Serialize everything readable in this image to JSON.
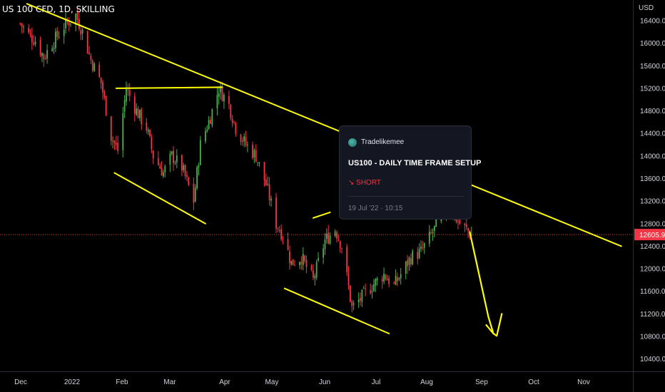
{
  "header": {
    "title": "US 100 CFD, 1D, SKILLING"
  },
  "price_axis": {
    "unit": "USD",
    "ticks": [
      "16400.0",
      "16000.0",
      "15600.0",
      "15200.0",
      "14800.0",
      "14400.0",
      "14000.0",
      "13600.0",
      "13200.0",
      "12800.0",
      "12400.0",
      "12000.0",
      "11600.0",
      "11200.0",
      "10800.0",
      "10400.0"
    ],
    "last_price_label": "12605.9"
  },
  "time_axis": {
    "labels": [
      "Dec",
      "2022",
      "Feb",
      "Mar",
      "Apr",
      "May",
      "Jun",
      "Jul",
      "Aug",
      "Sep",
      "Oct",
      "Nov"
    ]
  },
  "idea_card": {
    "author": "Tradelikemee",
    "title": "US100 - DAILY TIME FRAME SETUP",
    "direction": "↘ SHORT",
    "date": "19 Jul '22 · 10:15"
  },
  "colors": {
    "background": "#000000",
    "up_candle": "#4caf50",
    "down_candle": "#f23645",
    "drawing": "#ffff00",
    "last_price_line": "#f23645",
    "axis_text": "#d1d4dc"
  },
  "chart_data": {
    "type": "candlestick",
    "ylim": [
      10100,
      16700
    ],
    "y_ticks": [
      16400,
      16000,
      15600,
      15200,
      14800,
      14400,
      14000,
      13600,
      13200,
      12800,
      12400,
      12000,
      11600,
      11200,
      10800,
      10400
    ],
    "x_labels": [
      "Dec",
      "2022",
      "Feb",
      "Mar",
      "Apr",
      "May",
      "Jun",
      "Jul",
      "Aug",
      "Sep",
      "Oct",
      "Nov"
    ],
    "last_price": 12605.9,
    "close_path": [
      [
        "2021-12-01",
        16350
      ],
      [
        "2021-12-06",
        16150
      ],
      [
        "2021-12-10",
        16050
      ],
      [
        "2021-12-15",
        15750
      ],
      [
        "2021-12-20",
        16000
      ],
      [
        "2021-12-27",
        16300
      ],
      [
        "2022-01-03",
        16500
      ],
      [
        "2022-01-07",
        16200
      ],
      [
        "2022-01-12",
        15700
      ],
      [
        "2022-01-18",
        15300
      ],
      [
        "2022-01-24",
        14350
      ],
      [
        "2022-01-28",
        14100
      ],
      [
        "2022-02-02",
        15200
      ],
      [
        "2022-02-08",
        14800
      ],
      [
        "2022-02-14",
        14500
      ],
      [
        "2022-02-18",
        14000
      ],
      [
        "2022-02-24",
        13700
      ],
      [
        "2022-03-01",
        14000
      ],
      [
        "2022-03-07",
        13800
      ],
      [
        "2022-03-14",
        13200
      ],
      [
        "2022-03-18",
        14200
      ],
      [
        "2022-03-24",
        14700
      ],
      [
        "2022-03-29",
        15200
      ],
      [
        "2022-04-04",
        14900
      ],
      [
        "2022-04-08",
        14500
      ],
      [
        "2022-04-14",
        14200
      ],
      [
        "2022-04-20",
        14000
      ],
      [
        "2022-04-26",
        13500
      ],
      [
        "2022-05-02",
        12800
      ],
      [
        "2022-05-06",
        12600
      ],
      [
        "2022-05-11",
        12100
      ],
      [
        "2022-05-17",
        12200
      ],
      [
        "2022-05-24",
        11800
      ],
      [
        "2022-05-31",
        12500
      ],
      [
        "2022-06-06",
        12700
      ],
      [
        "2022-06-10",
        12400
      ],
      [
        "2022-06-16",
        11300
      ],
      [
        "2022-06-22",
        11500
      ],
      [
        "2022-06-28",
        11700
      ],
      [
        "2022-07-05",
        11900
      ],
      [
        "2022-07-11",
        11700
      ],
      [
        "2022-07-15",
        11900
      ],
      [
        "2022-07-21",
        12200
      ],
      [
        "2022-07-27",
        12300
      ],
      [
        "2022-08-02",
        12600
      ],
      [
        "2022-08-08",
        12900
      ],
      [
        "2022-08-12",
        13100
      ],
      [
        "2022-08-19",
        12800
      ],
      [
        "2022-08-26",
        12605.9
      ]
    ],
    "drawings": [
      {
        "type": "trendline",
        "from": [
          "2021-12-05",
          16700
        ],
        "to": [
          "2022-11-23",
          12400
        ]
      },
      {
        "type": "trendline",
        "from": [
          "2022-01-27",
          15200
        ],
        "to": [
          "2022-03-31",
          15220
        ]
      },
      {
        "type": "trendline",
        "from": [
          "2022-01-26",
          13700
        ],
        "to": [
          "2022-03-21",
          12800
        ]
      },
      {
        "type": "trendline",
        "from": [
          "2022-05-07",
          11650
        ],
        "to": [
          "2022-07-08",
          10850
        ]
      },
      {
        "type": "trendline",
        "from": [
          "2022-05-24",
          12900
        ],
        "to": [
          "2022-06-03",
          13000
        ]
      },
      {
        "type": "projection",
        "points": [
          [
            "2022-08-25",
            12650
          ],
          [
            "2022-09-05",
            11150
          ],
          [
            "2022-09-08",
            10850
          ],
          [
            "2022-09-10",
            10810
          ],
          [
            "2022-09-13",
            11200
          ]
        ]
      }
    ]
  }
}
